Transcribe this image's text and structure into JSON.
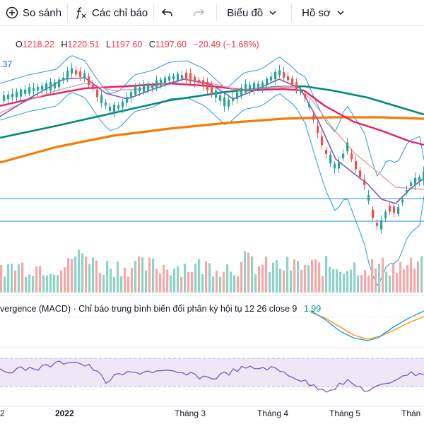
{
  "toolbar": {
    "compare_label": "So sánh",
    "indicators_label": "Các chỉ báo",
    "chart_type_label": "Biểu đồ",
    "profile_label": "Hồ sơ"
  },
  "ohlc": {
    "o_key": "O",
    "o_val": "1218.22",
    "h_key": "H",
    "h_val": "1220.51",
    "l_key": "L",
    "l_val": "1197.60",
    "c_key": "C",
    "c_val": "1197.60",
    "change": "−20.49 (−1.68%)"
  },
  "left_value": ".37",
  "macd": {
    "label": "vergence (MACD) · Chỉ báo trung bình biến đổi phân kỳ hội tụ 12 26 close 9",
    "value": "1.99"
  },
  "time_axis": {
    "t0": "2",
    "t1": "2022",
    "t2": "Tháng 3",
    "t3": "Tháng 4",
    "t4": "Tháng 5",
    "t5": "Thán"
  },
  "colors": {
    "up": "#26a69a",
    "down": "#ef5350",
    "ma_orange": "#f57c00",
    "ma_teal": "#00897b",
    "ma_red": "#e91e63",
    "ma_purple": "#7e57c2",
    "bands": "#2196f3",
    "rsi_band": "#ede7f6"
  }
}
